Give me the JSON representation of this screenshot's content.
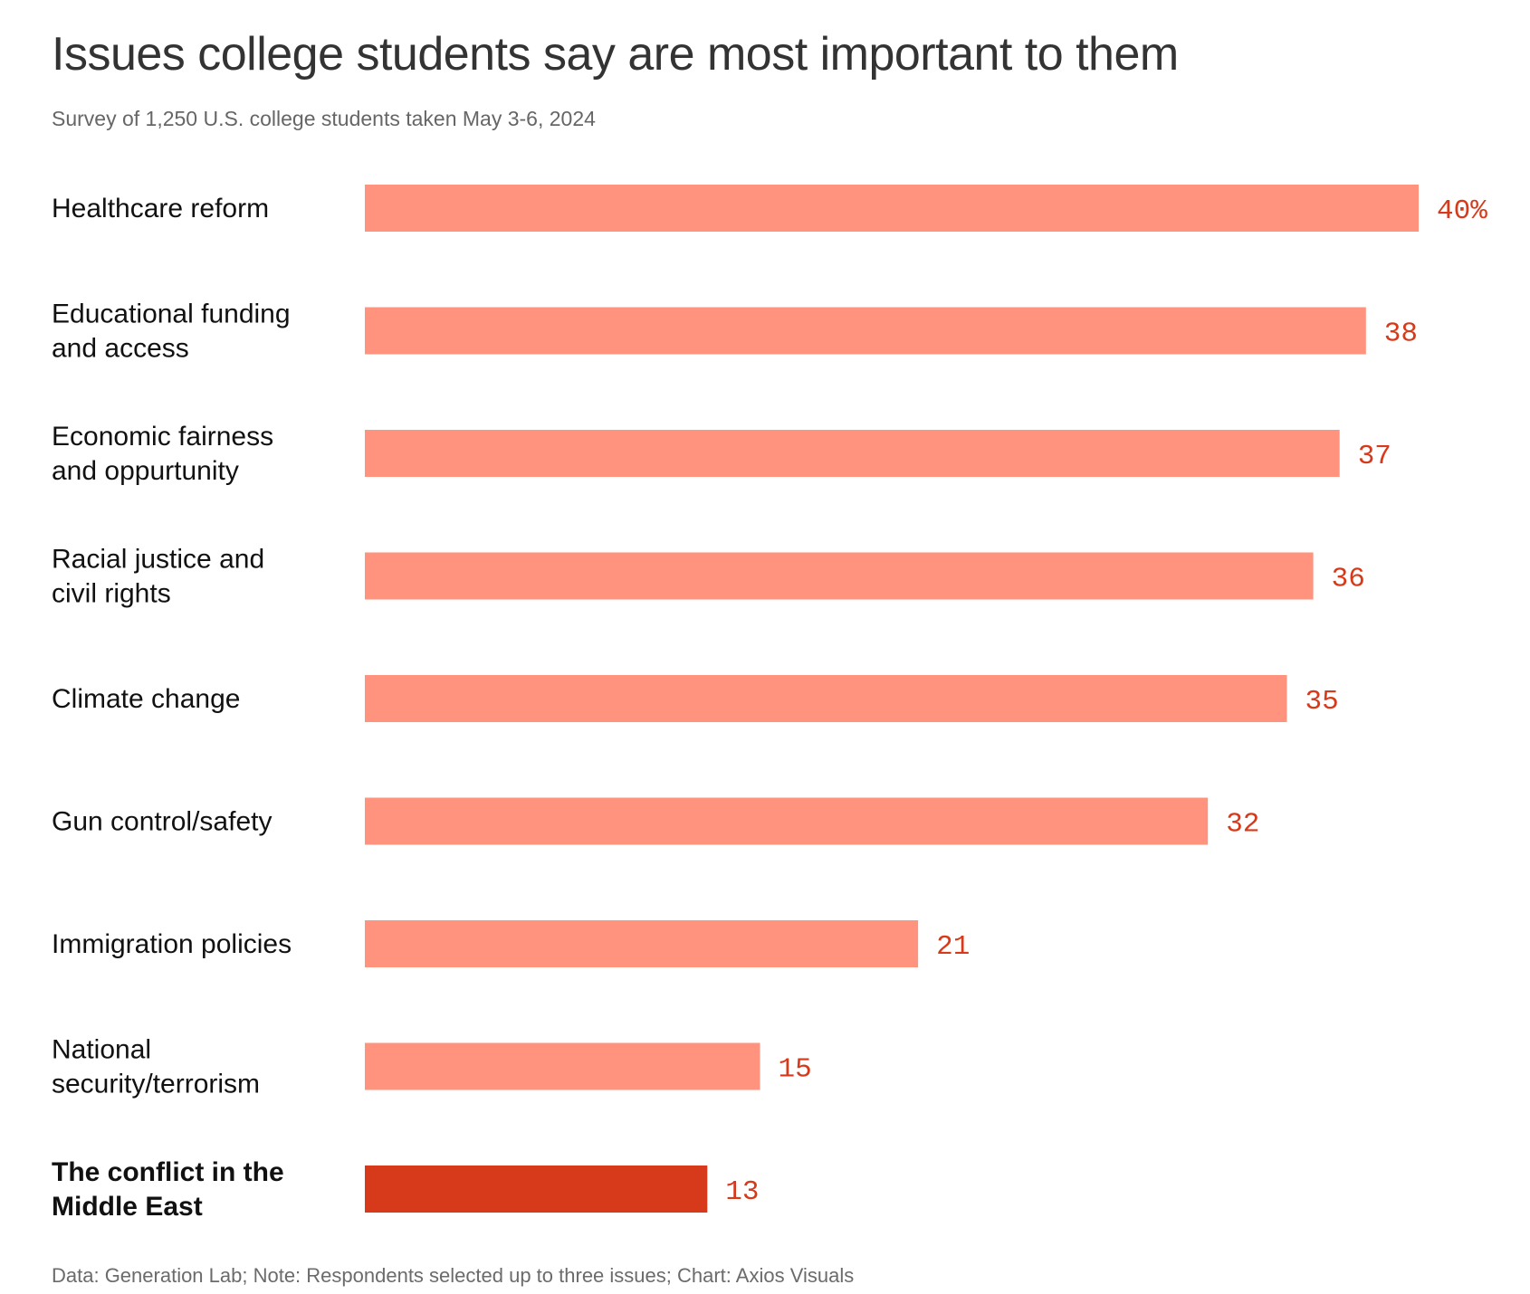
{
  "header": {
    "title": "Issues college students say are most important to them",
    "subtitle": "Survey of 1,250 U.S. college students taken May 3-6, 2024"
  },
  "footer": {
    "note": "Data: Generation Lab; Note: Respondents selected up to three issues; Chart: Axios Visuals"
  },
  "colors": {
    "bar": "#ff937d",
    "highlight_bar": "#d63a1a",
    "value_label": "#d63a1a"
  },
  "chart_data": {
    "type": "bar",
    "orientation": "horizontal",
    "title": "Issues college students say are most important to them",
    "subtitle": "Survey of 1,250 U.S. college students taken May 3-6, 2024",
    "categories": [
      [
        "Healthcare reform"
      ],
      [
        "Educational funding",
        "and access"
      ],
      [
        "Economic fairness",
        "and oppurtunity"
      ],
      [
        "Racial justice and",
        "civil rights"
      ],
      [
        "Climate change"
      ],
      [
        "Gun control/safety"
      ],
      [
        "Immigration policies"
      ],
      [
        "National",
        "security/terrorism"
      ],
      [
        "The conflict in the",
        "Middle East"
      ]
    ],
    "values": [
      40,
      38,
      37,
      36,
      35,
      32,
      21,
      15,
      13
    ],
    "value_labels": [
      "40%",
      "38",
      "37",
      "36",
      "35",
      "32",
      "21",
      "15",
      "13"
    ],
    "highlight_index": 8,
    "unit": "%",
    "xlim": [
      0,
      40
    ],
    "grid": false,
    "legend": "none"
  }
}
